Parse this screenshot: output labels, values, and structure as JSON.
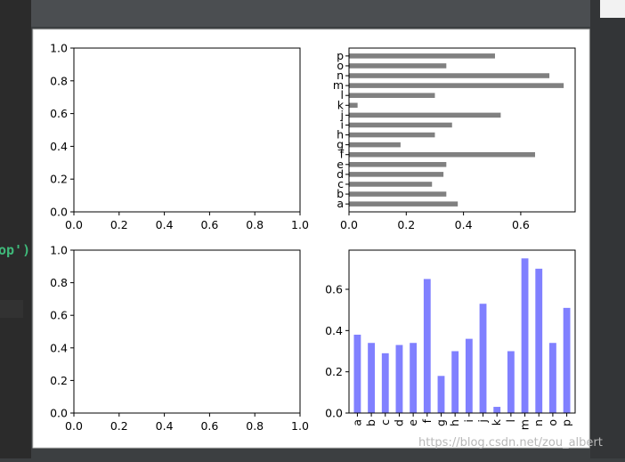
{
  "editor_fragment": "op')",
  "watermark": "https://blog.csdn.net/zou_albert",
  "chart_data": [
    {
      "type": "blank",
      "xlim": [
        0,
        1
      ],
      "ylim": [
        0,
        1
      ],
      "xticks": [
        {
          "value": 0,
          "label": "0.0"
        },
        {
          "value": 0.2,
          "label": "0.2"
        },
        {
          "value": 0.4,
          "label": "0.4"
        },
        {
          "value": 0.6,
          "label": "0.6"
        },
        {
          "value": 0.8,
          "label": "0.8"
        },
        {
          "value": 1,
          "label": "1.0"
        }
      ],
      "yticks": [
        {
          "value": 0,
          "label": "0.0"
        },
        {
          "value": 0.2,
          "label": "0.2"
        },
        {
          "value": 0.4,
          "label": "0.4"
        },
        {
          "value": 0.6,
          "label": "0.6"
        },
        {
          "value": 0.8,
          "label": "0.8"
        },
        {
          "value": 1,
          "label": "1.0"
        }
      ]
    },
    {
      "type": "barh",
      "color": "#808080",
      "categories": [
        "a",
        "b",
        "c",
        "d",
        "e",
        "f",
        "g",
        "h",
        "i",
        "j",
        "k",
        "l",
        "m",
        "n",
        "o",
        "p"
      ],
      "values": [
        0.38,
        0.34,
        0.29,
        0.33,
        0.34,
        0.65,
        0.18,
        0.3,
        0.36,
        0.53,
        0.03,
        0.3,
        0.75,
        0.7,
        0.34,
        0.51
      ],
      "xlim": [
        0,
        0.79
      ],
      "xticks": [
        {
          "value": 0,
          "label": "0.0"
        },
        {
          "value": 0.2,
          "label": "0.2"
        },
        {
          "value": 0.4,
          "label": "0.4"
        },
        {
          "value": 0.6,
          "label": "0.6"
        }
      ]
    },
    {
      "type": "blank",
      "xlim": [
        0,
        1
      ],
      "ylim": [
        0,
        1
      ],
      "xticks": [
        {
          "value": 0,
          "label": "0.0"
        },
        {
          "value": 0.2,
          "label": "0.2"
        },
        {
          "value": 0.4,
          "label": "0.4"
        },
        {
          "value": 0.6,
          "label": "0.6"
        },
        {
          "value": 0.8,
          "label": "0.8"
        },
        {
          "value": 1,
          "label": "1.0"
        }
      ],
      "yticks": [
        {
          "value": 0,
          "label": "0.0"
        },
        {
          "value": 0.2,
          "label": "0.2"
        },
        {
          "value": 0.4,
          "label": "0.4"
        },
        {
          "value": 0.6,
          "label": "0.6"
        },
        {
          "value": 0.8,
          "label": "0.8"
        },
        {
          "value": 1,
          "label": "1.0"
        }
      ]
    },
    {
      "type": "bar",
      "color": "#8080ff",
      "categories": [
        "a",
        "b",
        "c",
        "d",
        "e",
        "f",
        "g",
        "h",
        "i",
        "j",
        "k",
        "l",
        "m",
        "n",
        "o",
        "p"
      ],
      "values": [
        0.38,
        0.34,
        0.29,
        0.33,
        0.34,
        0.65,
        0.18,
        0.3,
        0.36,
        0.53,
        0.03,
        0.3,
        0.75,
        0.7,
        0.34,
        0.51
      ],
      "ylim": [
        0,
        0.79
      ],
      "yticks": [
        {
          "value": 0,
          "label": "0.0"
        },
        {
          "value": 0.2,
          "label": "0.2"
        },
        {
          "value": 0.4,
          "label": "0.4"
        },
        {
          "value": 0.6,
          "label": "0.6"
        }
      ]
    }
  ]
}
